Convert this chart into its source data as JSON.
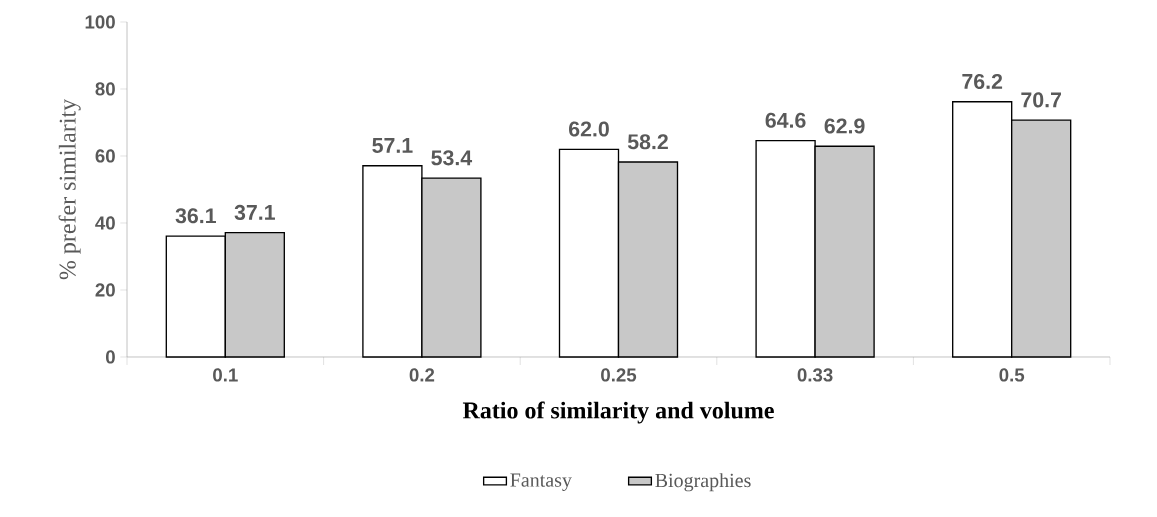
{
  "chart_data": {
    "type": "bar",
    "xlabel": "Ratio of similarity and volume",
    "ylabel": "% prefer similarity",
    "categories": [
      "0.1",
      "0.2",
      "0.25",
      "0.33",
      "0.5"
    ],
    "series": [
      {
        "name": "Fantasy",
        "color": "#ffffff",
        "values": [
          36.1,
          57.1,
          62.0,
          64.6,
          76.2
        ],
        "value_labels": [
          "36.1",
          "57.1",
          "62.0",
          "64.6",
          "76.2"
        ]
      },
      {
        "name": "Biographies",
        "color": "#c8c8c8",
        "values": [
          37.1,
          53.4,
          58.2,
          62.9,
          70.7
        ],
        "value_labels": [
          "37.1",
          "53.4",
          "58.2",
          "62.9",
          "70.7"
        ]
      }
    ],
    "ylim": [
      0,
      100
    ],
    "yticks": [
      0,
      20,
      40,
      60,
      80,
      100
    ],
    "grid": false,
    "legend": "bottom"
  }
}
